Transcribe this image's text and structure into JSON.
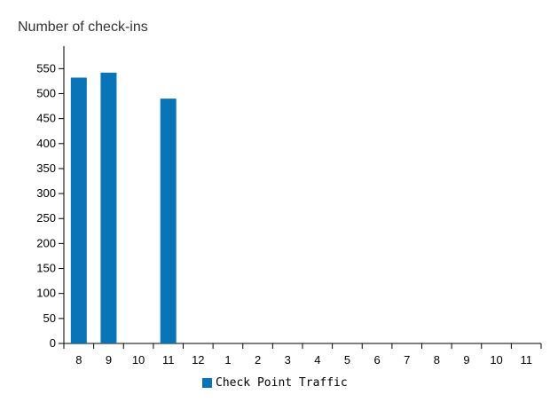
{
  "chart_data": {
    "type": "bar",
    "title": "",
    "ylabel": "Number of check-ins",
    "xlabel": "",
    "categories": [
      "8",
      "9",
      "10",
      "11",
      "12",
      "1",
      "2",
      "3",
      "4",
      "5",
      "6",
      "7",
      "8",
      "9",
      "10",
      "11"
    ],
    "series": [
      {
        "name": "Check Point Traffic",
        "color": "#0a74b9",
        "values": [
          532,
          542,
          0,
          490,
          0,
          0,
          0,
          0,
          0,
          0,
          0,
          0,
          0,
          0,
          0,
          0
        ]
      }
    ],
    "yticks": [
      "0",
      "50",
      "100",
      "150",
      "200",
      "250",
      "300",
      "350",
      "400",
      "450",
      "500",
      "550"
    ],
    "ylim": [
      0,
      595
    ],
    "grid": false,
    "legend_position": "bottom"
  }
}
